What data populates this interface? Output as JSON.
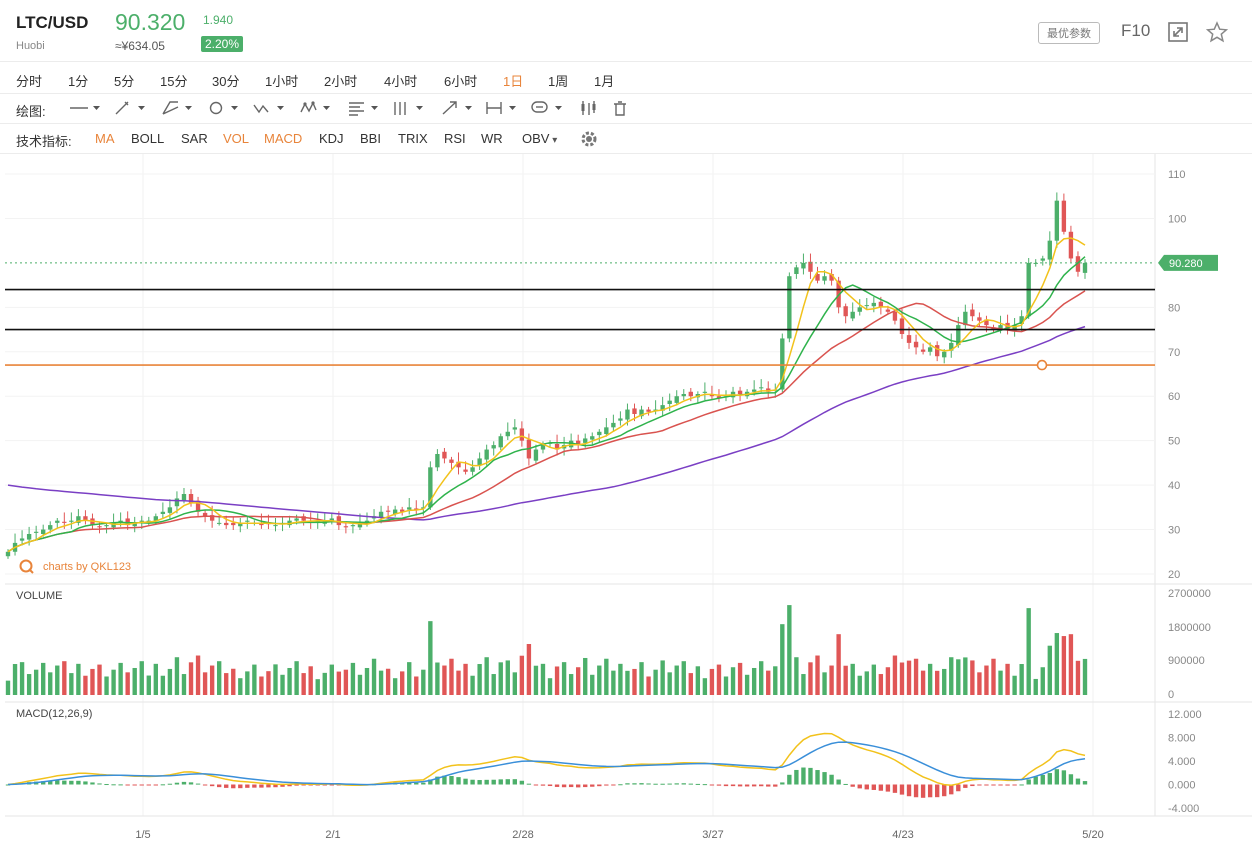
{
  "header": {
    "symbol": "LTC/USD",
    "exchange": "Huobi",
    "price": "90.320",
    "cny": "≈¥634.05",
    "change": "1.940",
    "change_pct": "2.20%",
    "best_params": "最优参数",
    "f10": "F10",
    "accent_up": "#4caf6a",
    "accent_down": "#e05656",
    "accent_orange": "#e8843a"
  },
  "timeframes": {
    "items": [
      "分时",
      "1分",
      "5分",
      "15分",
      "30分",
      "1小时",
      "2小时",
      "4小时",
      "6小时",
      "1日",
      "1周",
      "1月"
    ],
    "active": "1日"
  },
  "drawing": {
    "label": "绘图:",
    "tools": [
      "line-icon",
      "pen-icon",
      "channel-icon",
      "circle-icon",
      "wave-icon",
      "pattern-icon",
      "fib-icon",
      "bars-icon",
      "arrow-icon",
      "measure-icon",
      "comment-icon",
      "candle-icon",
      "trash-icon"
    ]
  },
  "indicators": {
    "label": "技术指标:",
    "items": [
      "MA",
      "BOLL",
      "SAR",
      "VOL",
      "MACD",
      "KDJ",
      "BBI",
      "TRIX",
      "RSI",
      "WR",
      "OBV"
    ],
    "active": [
      "MA",
      "VOL",
      "MACD"
    ]
  },
  "chart_data": {
    "type": "candlestick",
    "watermark": "charts by QKL123",
    "x_ticks": [
      "1/5",
      "2/1",
      "2/28",
      "3/27",
      "4/23",
      "5/20"
    ],
    "price_axis": {
      "ticks": [
        110,
        100,
        80,
        70,
        60,
        50,
        40,
        30,
        20
      ],
      "range": [
        20,
        110
      ]
    },
    "current_price_label": "90.280",
    "horizontal_lines": [
      {
        "value": 84,
        "color": "#111111"
      },
      {
        "value": 75,
        "color": "#111111"
      },
      {
        "value": 67,
        "color": "#e8843a"
      }
    ],
    "closes": [
      25,
      27,
      28,
      29,
      29.5,
      30,
      31,
      32,
      31.5,
      32,
      33,
      32,
      31,
      30.5,
      31,
      31.5,
      32,
      31,
      31.5,
      32,
      32,
      33,
      34,
      35,
      37,
      38,
      36,
      34,
      33,
      32,
      31.5,
      31,
      31,
      31.5,
      32,
      31.5,
      31,
      31.2,
      31,
      31.5,
      32,
      32.5,
      32,
      31.5,
      31.8,
      32,
      32.5,
      31,
      30.5,
      31,
      31.5,
      32,
      33,
      34,
      34,
      34.5,
      34,
      35,
      34.5,
      35,
      44,
      47,
      46,
      45,
      44,
      43,
      44,
      46,
      48,
      49,
      51,
      52,
      53,
      50,
      46,
      48,
      49,
      49.5,
      48,
      49,
      50,
      49,
      50.5,
      51,
      52,
      53,
      54,
      55,
      57,
      56,
      57,
      56.5,
      57,
      58,
      59,
      60,
      60.5,
      60,
      60.5,
      61,
      60,
      59.5,
      60,
      61,
      60.5,
      61,
      61.5,
      62,
      61,
      61.5,
      73,
      87,
      89,
      90,
      88,
      86,
      87,
      86,
      80,
      78,
      79,
      80,
      80.5,
      81,
      80,
      79,
      77,
      74,
      72,
      71,
      70,
      71,
      69,
      70,
      72,
      76,
      79,
      78,
      77,
      76,
      75,
      76,
      75,
      76,
      78,
      90,
      90,
      91,
      95,
      104,
      97,
      91,
      88,
      90
    ],
    "volume": {
      "label": "VOLUME",
      "ticks": [
        "2700000",
        "1800000",
        "900000",
        "0"
      ],
      "range": [
        0,
        2700000
      ]
    },
    "macd": {
      "label": "MACD(12,26,9)",
      "ticks": [
        "12.000",
        "8.000",
        "4.000",
        "0.000",
        "-4.000"
      ],
      "range": [
        -4,
        12
      ]
    }
  }
}
